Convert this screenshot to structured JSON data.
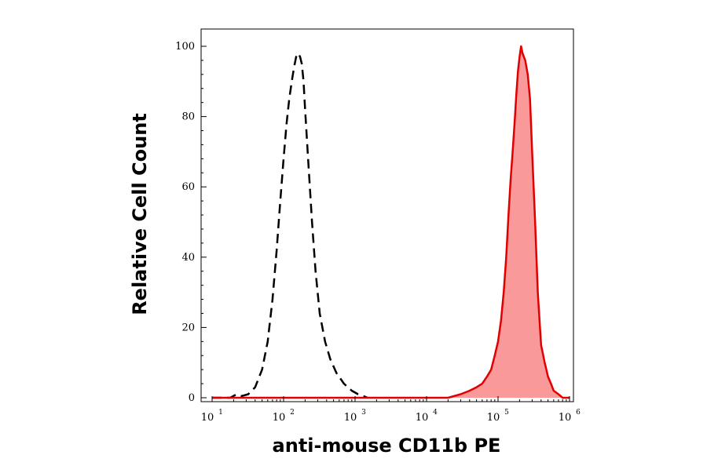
{
  "chart_data": {
    "type": "area",
    "xlabel": "anti-mouse CD11b PE",
    "ylabel": "Relative Cell Count",
    "xscale": "log",
    "xlim": [
      10,
      1000000
    ],
    "ylim": [
      0,
      105
    ],
    "grid": false,
    "x_ticks": [
      {
        "base": "10",
        "exp": "1"
      },
      {
        "base": "10",
        "exp": "2"
      },
      {
        "base": "10",
        "exp": "3"
      },
      {
        "base": "10",
        "exp": "4"
      },
      {
        "base": "10",
        "exp": "5"
      },
      {
        "base": "10",
        "exp": "6"
      }
    ],
    "y_ticks": [
      "0",
      "20",
      "40",
      "60",
      "80",
      "100"
    ],
    "series": [
      {
        "style": "dashed",
        "color": "#000000",
        "fill": "none",
        "x": [
          10,
          18,
          22,
          26,
          32,
          40,
          50,
          60,
          70,
          80,
          90,
          100,
          110,
          120,
          130,
          140,
          150,
          160,
          170,
          180,
          190,
          200,
          220,
          250,
          280,
          320,
          380,
          450,
          550,
          700,
          900,
          1100,
          1300,
          1500
        ],
        "y": [
          0,
          0,
          1,
          0.5,
          1,
          3,
          8,
          16,
          28,
          42,
          56,
          68,
          78,
          85,
          90,
          94,
          97,
          98,
          97,
          95,
          90,
          82,
          68,
          50,
          36,
          24,
          16,
          11,
          7,
          4,
          2,
          1,
          0.5,
          0
        ]
      },
      {
        "style": "solid",
        "color": "#e00000",
        "fill": "#f99999",
        "x": [
          10,
          20000,
          30000,
          40000,
          50000,
          60000,
          70000,
          80000,
          90000,
          100000,
          110000,
          120000,
          130000,
          140000,
          150000,
          160000,
          170000,
          180000,
          190000,
          200000,
          210000,
          220000,
          240000,
          260000,
          280000,
          300000,
          330000,
          360000,
          400000,
          450000,
          500000,
          550000,
          600000,
          700000,
          800000,
          1000000
        ],
        "y": [
          0,
          0,
          1,
          2,
          3,
          4,
          6,
          8,
          12,
          16,
          22,
          30,
          40,
          52,
          62,
          70,
          78,
          86,
          93,
          97,
          100,
          98,
          96,
          92,
          85,
          70,
          50,
          30,
          15,
          10,
          6,
          4,
          2,
          1,
          0,
          0
        ]
      }
    ]
  }
}
